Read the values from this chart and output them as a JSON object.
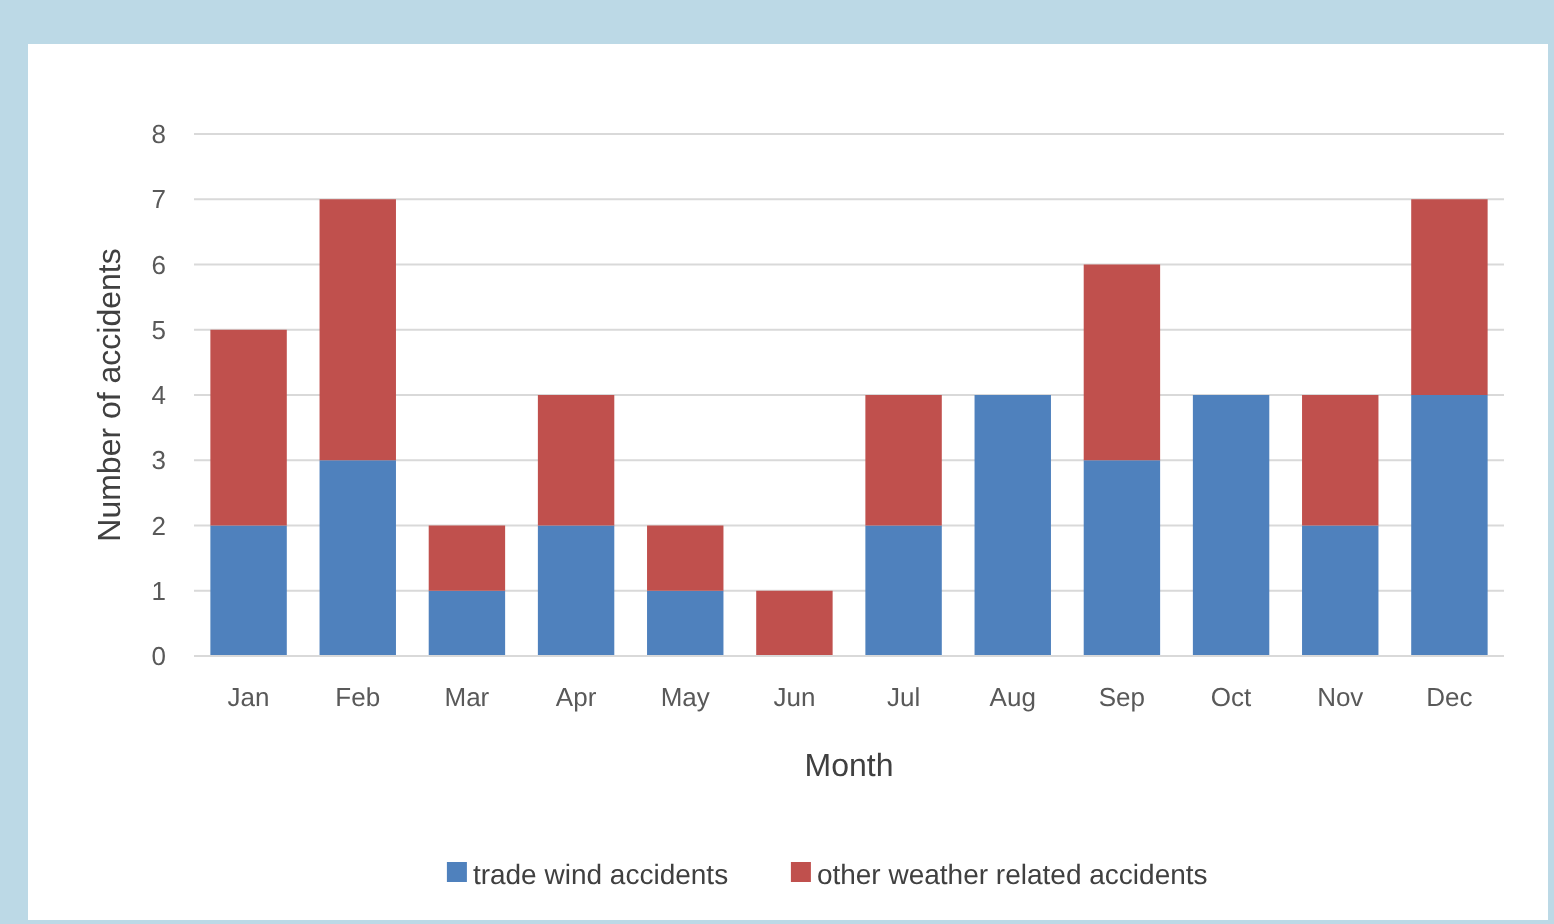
{
  "chart_data": {
    "type": "bar",
    "stacked": true,
    "xlabel": "Month",
    "ylabel": "Number of accidents",
    "categories": [
      "Jan",
      "Feb",
      "Mar",
      "Apr",
      "May",
      "Jun",
      "Jul",
      "Aug",
      "Sep",
      "Oct",
      "Nov",
      "Dec"
    ],
    "series": [
      {
        "name": "trade wind accidents",
        "color": "#4f81bd",
        "values": [
          2,
          3,
          1,
          2,
          1,
          0,
          2,
          4,
          3,
          4,
          2,
          4
        ]
      },
      {
        "name": "other weather related accidents",
        "color": "#c0504d",
        "values": [
          3,
          4,
          1,
          2,
          1,
          1,
          2,
          0,
          3,
          0,
          2,
          3
        ]
      }
    ],
    "ylim": [
      0,
      8
    ],
    "yticks": [
      0,
      1,
      2,
      3,
      4,
      5,
      6,
      7,
      8
    ],
    "grid": "y",
    "legend": "bottom"
  }
}
